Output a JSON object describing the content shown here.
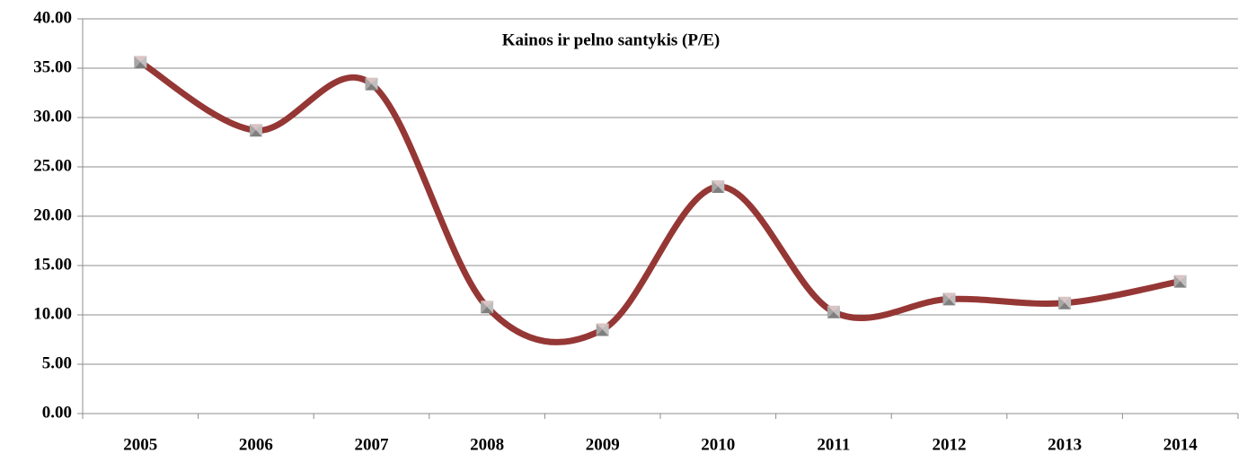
{
  "chart_data": {
    "type": "line",
    "title": "Kainos ir pelno santykis (P/E)",
    "categories": [
      "2005",
      "2006",
      "2007",
      "2008",
      "2009",
      "2010",
      "2011",
      "2012",
      "2013",
      "2014"
    ],
    "series": [
      {
        "name": "P/E",
        "color": "#953735",
        "values": [
          35.6,
          28.7,
          33.4,
          10.8,
          8.5,
          23.0,
          10.3,
          11.6,
          11.2,
          13.4
        ]
      }
    ],
    "ylim": [
      0,
      40
    ],
    "yticks": [
      {
        "value": 0,
        "label": "0.00"
      },
      {
        "value": 5,
        "label": "5.00"
      },
      {
        "value": 10,
        "label": "10.00"
      },
      {
        "value": 15,
        "label": "15.00"
      },
      {
        "value": 20,
        "label": "20.00"
      },
      {
        "value": 25,
        "label": "25.00"
      },
      {
        "value": 30,
        "label": "30.00"
      },
      {
        "value": 35,
        "label": "35.00"
      },
      {
        "value": 40,
        "label": "40.00"
      }
    ],
    "grid": true,
    "smooth": true
  }
}
